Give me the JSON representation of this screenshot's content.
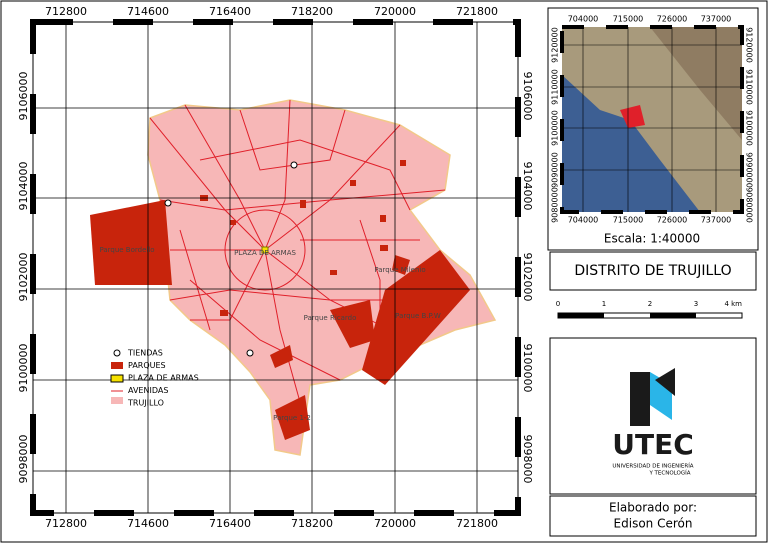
{
  "main_map": {
    "xticks": [
      712800,
      714600,
      716400,
      718200,
      720000,
      721800
    ],
    "yticks": [
      9106000,
      9104000,
      9102000,
      9100000,
      9098000
    ],
    "labels": [
      "Parque Bordello",
      "PLAZA DE ARMAS",
      "Parque Milenio",
      "Parque Ricardo",
      "Parque B.P.W",
      "Parque 1-2"
    ],
    "legend": [
      "TIENDAS",
      "PARQUES",
      "PLAZA DE ARMAS",
      "AVENIDAS",
      "TRUJILLO"
    ]
  },
  "inset_map": {
    "xticks": [
      704000,
      715000,
      726000,
      737000
    ],
    "yticks": [
      9120000,
      9110000,
      9100000,
      9090000,
      9080000
    ]
  },
  "scale": "Escala: 1:40000",
  "title": "DISTRITO DE TRUJILLO",
  "scalebar": {
    "ticks": [
      "0",
      "1",
      "2",
      "3",
      "4 km"
    ]
  },
  "logo": {
    "name": "UTEC",
    "subtitle_1": "UNIVERSIDAD DE INGENIERÍA",
    "subtitle_2": "Y TECNOLOGÍA"
  },
  "credits": {
    "label": "Elaborado por:",
    "author": "Edison Cerón"
  }
}
